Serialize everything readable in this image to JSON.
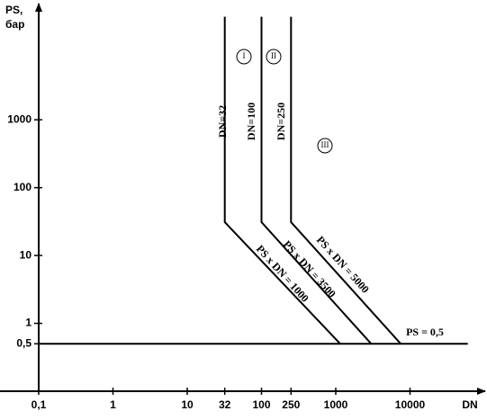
{
  "chart_data": {
    "type": "line",
    "x_label": "DN",
    "y_label": [
      "PS,",
      "бар"
    ],
    "log_x": true,
    "log_y": true,
    "xlim": [
      0.1,
      80000
    ],
    "ylim": [
      0.1,
      50000
    ],
    "xticks": [
      {
        "value": 0.1,
        "label": "0,1"
      },
      1,
      10,
      32,
      100,
      250,
      1000,
      10000
    ],
    "yticks": [
      {
        "value": 0.5,
        "label": "0,5"
      },
      1,
      10,
      100,
      1000
    ],
    "series": [
      {
        "color": "#000000",
        "x": [
          32,
          32,
          1150
        ],
        "values": [
          33000,
          31,
          0.5
        ]
      },
      {
        "color": "#000000",
        "x": [
          100,
          100,
          3000
        ],
        "values": [
          33000,
          31,
          0.5
        ]
      },
      {
        "color": "#000000",
        "x": [
          250,
          250,
          7500
        ],
        "values": [
          33000,
          31,
          0.5
        ]
      },
      {
        "color": "#000000",
        "x": [
          0.1,
          60000
        ],
        "values": [
          0.5,
          0.5
        ]
      }
    ],
    "annotations": [
      "DN=32",
      "DN=100",
      "DN=250",
      "PS x DN = 1000",
      "PS x DN = 3500",
      "PS x DN = 5000",
      "PS = 0,5",
      "I",
      "II",
      "III"
    ]
  }
}
